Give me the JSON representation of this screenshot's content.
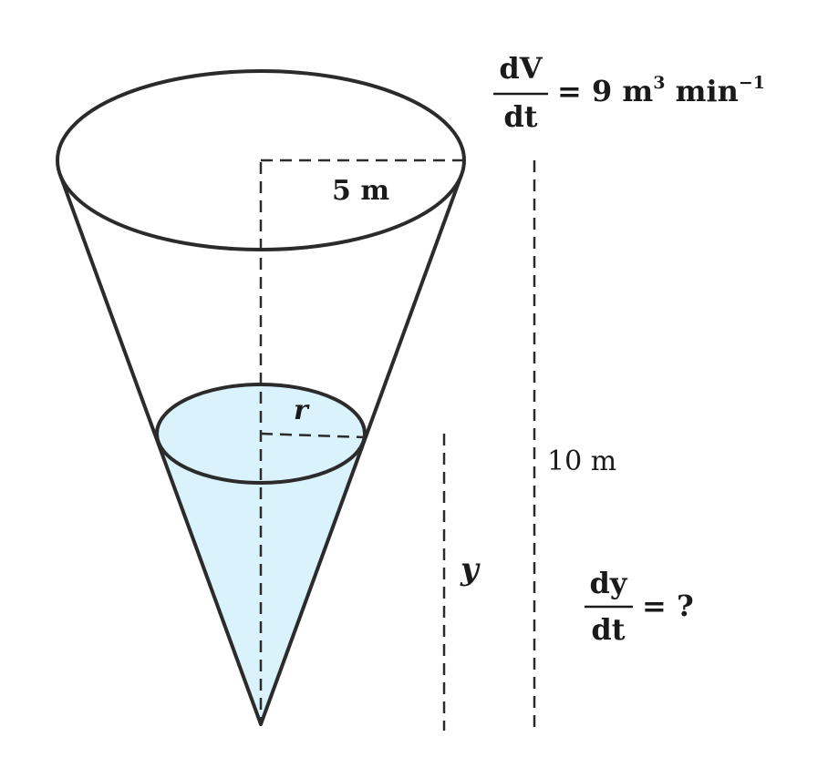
{
  "labels": {
    "radius_top": "5 m",
    "radius_water": "r",
    "depth_water": "y",
    "height_total": "10 m",
    "dv_numerator": "dV",
    "dv_denominator": "dt",
    "dv_equals": "= 9 m",
    "dv_unit_tail": " min",
    "dv_exp_volume": "3",
    "dv_exp_rate": "−1",
    "dy_numerator": "dy",
    "dy_denominator": "dt",
    "dy_equals": "= ?"
  },
  "colors": {
    "water_fill": "#d9f2fc",
    "outline": "#2b2b2b"
  }
}
